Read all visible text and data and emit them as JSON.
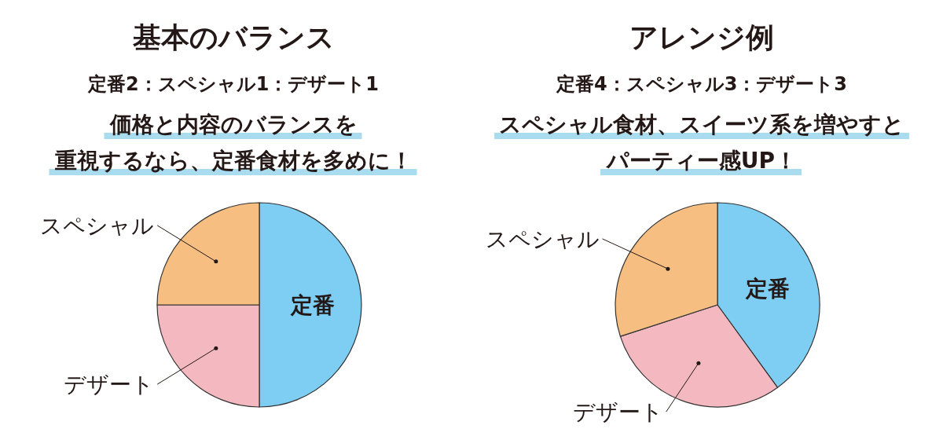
{
  "chart_data": [
    {
      "type": "pie",
      "title": "基本のバランス",
      "subtitle": "定番2：スペシャル1：デザート1",
      "annotations": [
        "価格と内容のバランスを",
        "重視するなら、定番食材を多めに！"
      ],
      "categories": [
        "定番",
        "デザート",
        "スペシャル"
      ],
      "values": [
        50,
        25,
        25
      ],
      "colors": [
        "#7ecef4",
        "#f4b9c0",
        "#f6be80"
      ]
    },
    {
      "type": "pie",
      "title": "アレンジ例",
      "subtitle": "定番4：スペシャル3：デザート3",
      "annotations": [
        "スペシャル食材、スイーツ系を増やすと",
        "パーティー感UP！"
      ],
      "categories": [
        "定番",
        "デザート",
        "スペシャル"
      ],
      "values": [
        40,
        30,
        30
      ],
      "colors": [
        "#7ecef4",
        "#f4b9c0",
        "#f6be80"
      ]
    }
  ]
}
